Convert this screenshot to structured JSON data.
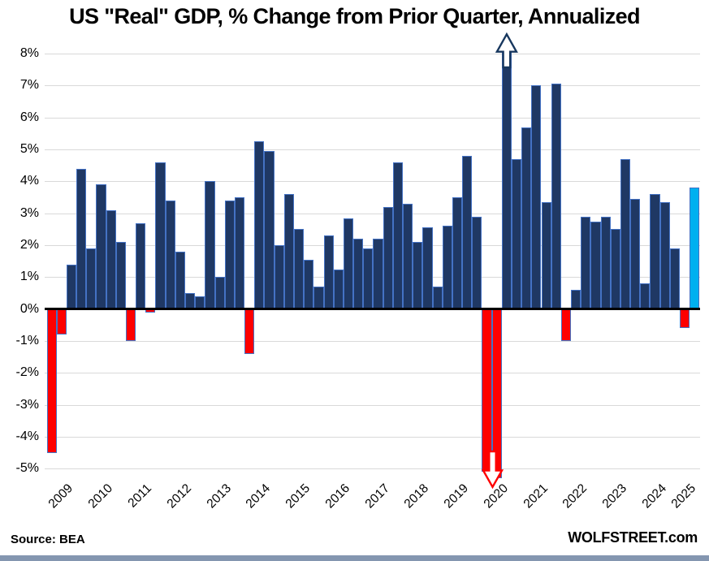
{
  "title": "US \"Real\" GDP, % Change from Prior Quarter, Annualized",
  "footer": {
    "source": "Source: BEA",
    "brand": "WOLFSTREET.com"
  },
  "chart_data": {
    "type": "bar",
    "title": "US \"Real\" GDP, % Change from Prior Quarter, Annualized",
    "ylabel": "% change from prior quarter, annualized",
    "ylim": [
      -5,
      8
    ],
    "grid": true,
    "legend_position": "none",
    "y_axis": {
      "ticks": [
        {
          "label": "8%",
          "value": 8
        },
        {
          "label": "7%",
          "value": 7
        },
        {
          "label": "6%",
          "value": 6
        },
        {
          "label": "5%",
          "value": 5
        },
        {
          "label": "4%",
          "value": 4
        },
        {
          "label": "3%",
          "value": 3
        },
        {
          "label": "2%",
          "value": 2
        },
        {
          "label": "1%",
          "value": 1
        },
        {
          "label": "0%",
          "value": 0
        },
        {
          "label": "-1%",
          "value": -1
        },
        {
          "label": "-2%",
          "value": -2
        },
        {
          "label": "-3%",
          "value": -3
        },
        {
          "label": "-4%",
          "value": -4
        },
        {
          "label": "-5%",
          "value": -5
        }
      ]
    },
    "x_axis": {
      "year_labels": [
        "2009",
        "2010",
        "2011",
        "2012",
        "2013",
        "2014",
        "2015",
        "2016",
        "2017",
        "2018",
        "2019",
        "2020",
        "2021",
        "2022",
        "2023",
        "2024",
        "2025"
      ]
    },
    "colors": {
      "positive_bar": "#1f3864",
      "negative_bar": "#fe0000",
      "latest_bar": "#00b0f0",
      "bar_border": "#4472c4",
      "gridline": "#d9d9d9",
      "zero_axis": "#000000",
      "up_arrow_outline": "#17375e",
      "down_arrow_outline": "#fe0000",
      "brand_band": "#8496b0"
    },
    "bars": [
      {
        "year": 2009,
        "quarter": "Q1",
        "value": -4.5,
        "color": "red"
      },
      {
        "year": 2009,
        "quarter": "Q2",
        "value": -0.8,
        "color": "red"
      },
      {
        "year": 2009,
        "quarter": "Q3",
        "value": 1.4,
        "color": "navy"
      },
      {
        "year": 2009,
        "quarter": "Q4",
        "value": 4.4,
        "color": "navy"
      },
      {
        "year": 2010,
        "quarter": "Q1",
        "value": 1.9,
        "color": "navy"
      },
      {
        "year": 2010,
        "quarter": "Q2",
        "value": 3.9,
        "color": "navy"
      },
      {
        "year": 2010,
        "quarter": "Q3",
        "value": 3.1,
        "color": "navy"
      },
      {
        "year": 2010,
        "quarter": "Q4",
        "value": 2.1,
        "color": "navy"
      },
      {
        "year": 2011,
        "quarter": "Q1",
        "value": -1.0,
        "color": "red"
      },
      {
        "year": 2011,
        "quarter": "Q2",
        "value": 2.7,
        "color": "navy"
      },
      {
        "year": 2011,
        "quarter": "Q3",
        "value": -0.1,
        "color": "red"
      },
      {
        "year": 2011,
        "quarter": "Q4",
        "value": 4.6,
        "color": "navy"
      },
      {
        "year": 2012,
        "quarter": "Q1",
        "value": 3.4,
        "color": "navy"
      },
      {
        "year": 2012,
        "quarter": "Q2",
        "value": 1.8,
        "color": "navy"
      },
      {
        "year": 2012,
        "quarter": "Q3",
        "value": 0.5,
        "color": "navy"
      },
      {
        "year": 2012,
        "quarter": "Q4",
        "value": 0.4,
        "color": "navy"
      },
      {
        "year": 2013,
        "quarter": "Q1",
        "value": 4.0,
        "color": "navy"
      },
      {
        "year": 2013,
        "quarter": "Q2",
        "value": 1.0,
        "color": "navy"
      },
      {
        "year": 2013,
        "quarter": "Q3",
        "value": 3.4,
        "color": "navy"
      },
      {
        "year": 2013,
        "quarter": "Q4",
        "value": 3.5,
        "color": "navy"
      },
      {
        "year": 2014,
        "quarter": "Q1",
        "value": -1.4,
        "color": "red"
      },
      {
        "year": 2014,
        "quarter": "Q2",
        "value": 5.25,
        "color": "navy"
      },
      {
        "year": 2014,
        "quarter": "Q3",
        "value": 4.95,
        "color": "navy"
      },
      {
        "year": 2014,
        "quarter": "Q4",
        "value": 2.0,
        "color": "navy"
      },
      {
        "year": 2015,
        "quarter": "Q1",
        "value": 3.6,
        "color": "navy"
      },
      {
        "year": 2015,
        "quarter": "Q2",
        "value": 2.5,
        "color": "navy"
      },
      {
        "year": 2015,
        "quarter": "Q3",
        "value": 1.55,
        "color": "navy"
      },
      {
        "year": 2015,
        "quarter": "Q4",
        "value": 0.7,
        "color": "navy"
      },
      {
        "year": 2016,
        "quarter": "Q1",
        "value": 2.3,
        "color": "navy"
      },
      {
        "year": 2016,
        "quarter": "Q2",
        "value": 1.25,
        "color": "navy"
      },
      {
        "year": 2016,
        "quarter": "Q3",
        "value": 2.85,
        "color": "navy"
      },
      {
        "year": 2016,
        "quarter": "Q4",
        "value": 2.2,
        "color": "navy"
      },
      {
        "year": 2017,
        "quarter": "Q1",
        "value": 1.9,
        "color": "navy"
      },
      {
        "year": 2017,
        "quarter": "Q2",
        "value": 2.2,
        "color": "navy"
      },
      {
        "year": 2017,
        "quarter": "Q3",
        "value": 3.2,
        "color": "navy"
      },
      {
        "year": 2017,
        "quarter": "Q4",
        "value": 4.6,
        "color": "navy"
      },
      {
        "year": 2018,
        "quarter": "Q1",
        "value": 3.3,
        "color": "navy"
      },
      {
        "year": 2018,
        "quarter": "Q2",
        "value": 2.1,
        "color": "navy"
      },
      {
        "year": 2018,
        "quarter": "Q3",
        "value": 2.55,
        "color": "navy"
      },
      {
        "year": 2018,
        "quarter": "Q4",
        "value": 0.7,
        "color": "navy"
      },
      {
        "year": 2019,
        "quarter": "Q1",
        "value": 2.6,
        "color": "navy"
      },
      {
        "year": 2019,
        "quarter": "Q2",
        "value": 3.5,
        "color": "navy"
      },
      {
        "year": 2019,
        "quarter": "Q3",
        "value": 4.8,
        "color": "navy"
      },
      {
        "year": 2019,
        "quarter": "Q4",
        "value": 2.9,
        "color": "navy"
      },
      {
        "year": 2020,
        "quarter": "Q1",
        "value": -5.3,
        "color": "red",
        "clipped": true
      },
      {
        "year": 2020,
        "quarter": "Q2",
        "value": null,
        "color": "red",
        "offscale": "down"
      },
      {
        "year": 2020,
        "quarter": "Q3",
        "value": null,
        "color": "navy",
        "offscale": "up"
      },
      {
        "year": 2020,
        "quarter": "Q4",
        "value": 4.7,
        "color": "navy"
      },
      {
        "year": 2021,
        "quarter": "Q1",
        "value": 5.7,
        "color": "navy"
      },
      {
        "year": 2021,
        "quarter": "Q2",
        "value": 7.0,
        "color": "navy"
      },
      {
        "year": 2021,
        "quarter": "Q3",
        "value": 3.35,
        "color": "navy"
      },
      {
        "year": 2021,
        "quarter": "Q4",
        "value": 7.05,
        "color": "navy"
      },
      {
        "year": 2022,
        "quarter": "Q1",
        "value": -1.0,
        "color": "red"
      },
      {
        "year": 2022,
        "quarter": "Q2",
        "value": 0.6,
        "color": "navy"
      },
      {
        "year": 2022,
        "quarter": "Q3",
        "value": 2.9,
        "color": "navy"
      },
      {
        "year": 2022,
        "quarter": "Q4",
        "value": 2.75,
        "color": "navy"
      },
      {
        "year": 2023,
        "quarter": "Q1",
        "value": 2.9,
        "color": "navy"
      },
      {
        "year": 2023,
        "quarter": "Q2",
        "value": 2.5,
        "color": "navy"
      },
      {
        "year": 2023,
        "quarter": "Q3",
        "value": 4.7,
        "color": "navy"
      },
      {
        "year": 2023,
        "quarter": "Q4",
        "value": 3.45,
        "color": "navy"
      },
      {
        "year": 2024,
        "quarter": "Q1",
        "value": 0.8,
        "color": "navy"
      },
      {
        "year": 2024,
        "quarter": "Q2",
        "value": 3.6,
        "color": "navy"
      },
      {
        "year": 2024,
        "quarter": "Q3",
        "value": 3.35,
        "color": "navy"
      },
      {
        "year": 2024,
        "quarter": "Q4",
        "value": 1.9,
        "color": "navy"
      },
      {
        "year": 2025,
        "quarter": "Q1",
        "value": -0.6,
        "color": "red"
      },
      {
        "year": 2025,
        "quarter": "Q2",
        "value": 3.8,
        "color": "cyan"
      }
    ]
  }
}
